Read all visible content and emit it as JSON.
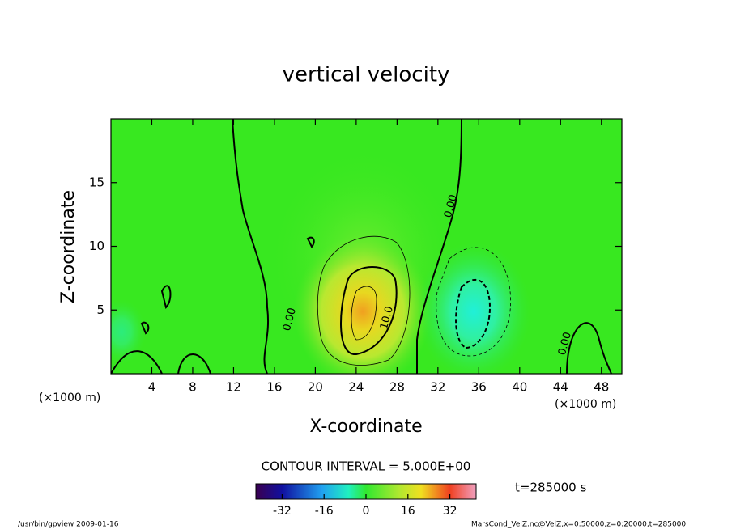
{
  "chart_data": {
    "type": "contour",
    "title": "vertical velocity",
    "xlabel": "X-coordinate",
    "ylabel": "Z-coordinate",
    "x_unit": "(×1000 m)",
    "xlim": [
      0,
      50
    ],
    "xticks": [
      4,
      8,
      12,
      16,
      20,
      24,
      28,
      32,
      36,
      40,
      44,
      48
    ],
    "ylim": [
      0,
      20
    ],
    "yticks": [
      5,
      10,
      15
    ],
    "contour_interval": "CONTOUR INTERVAL = 5.000E+00",
    "contour_labels": [
      "0.00",
      "0.00",
      "0.00",
      "10.0"
    ],
    "clim": [
      -42,
      42
    ],
    "cticks": [
      -32,
      -16,
      0,
      16,
      32
    ],
    "time": "t=285000 s",
    "footer_left": "/usr/bin/gpview  2009-01-16",
    "footer_right": "MarsCond_VelZ.nc@VelZ,x=0:50000,z=0:20000,t=285000"
  }
}
